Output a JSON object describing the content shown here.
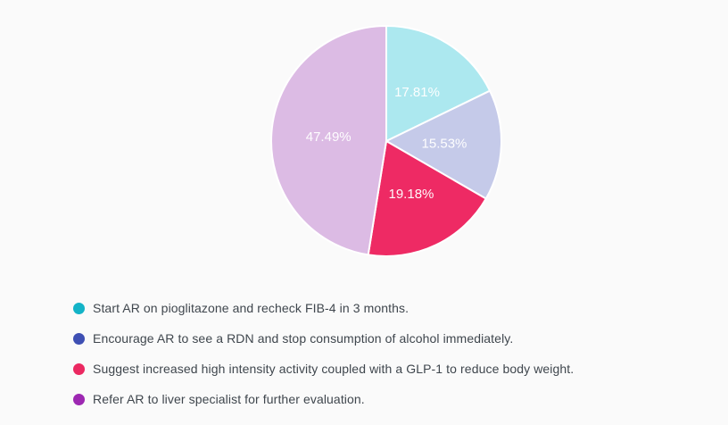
{
  "page": {
    "background_color": "#fafafa"
  },
  "chart_data": {
    "type": "pie",
    "title": "",
    "start_angle_deg": 0,
    "direction": "clockwise",
    "stroke_color": "#ffffff",
    "label_color": "#ffffff",
    "legend_position": "bottom-left",
    "slices": [
      {
        "label": "Start AR on pioglitazone and recheck FIB-4 in 3 months.",
        "value": 17.81,
        "display": "17.81%",
        "slice_color": "#ace8ef",
        "legend_color": "#13b3c7"
      },
      {
        "label": "Encourage AR to see a RDN and stop consumption of alcohol immediately.",
        "value": 15.53,
        "display": "15.53%",
        "slice_color": "#c5cae9",
        "legend_color": "#3e4fb3"
      },
      {
        "label": "Suggest increased high intensity activity coupled with a GLP-1 to reduce body weight.",
        "value": 19.18,
        "display": "19.18%",
        "slice_color": "#ee2a64",
        "legend_color": "#eb2861"
      },
      {
        "label": "Refer AR to liver specialist for further evaluation.",
        "value": 47.49,
        "display": "47.49%",
        "slice_color": "#dcbbe4",
        "legend_color": "#9d28b2"
      }
    ]
  }
}
